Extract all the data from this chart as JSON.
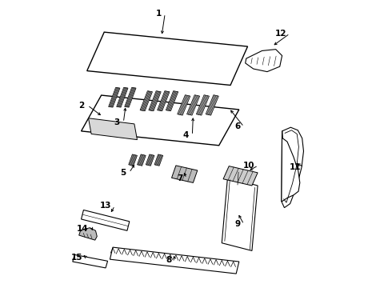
{
  "background_color": "#ffffff",
  "line_color": "#000000",
  "label_color": "#000000",
  "figsize": [
    4.9,
    3.6
  ],
  "dpi": 100,
  "leaders": {
    "1": {
      "label": [
        0.38,
        0.955
      ],
      "target": [
        0.38,
        0.875
      ]
    },
    "2": {
      "label": [
        0.11,
        0.635
      ],
      "target": [
        0.175,
        0.595
      ]
    },
    "3": {
      "label": [
        0.235,
        0.575
      ],
      "target": [
        0.255,
        0.635
      ]
    },
    "4": {
      "label": [
        0.475,
        0.53
      ],
      "target": [
        0.49,
        0.6
      ]
    },
    "5": {
      "label": [
        0.255,
        0.4
      ],
      "target": [
        0.29,
        0.435
      ]
    },
    "6": {
      "label": [
        0.655,
        0.56
      ],
      "target": [
        0.615,
        0.625
      ]
    },
    "7": {
      "label": [
        0.455,
        0.38
      ],
      "target": [
        0.455,
        0.408
      ]
    },
    "8": {
      "label": [
        0.415,
        0.095
      ],
      "target": [
        0.42,
        0.118
      ]
    },
    "9": {
      "label": [
        0.655,
        0.22
      ],
      "target": [
        0.645,
        0.26
      ]
    },
    "10": {
      "label": [
        0.705,
        0.425
      ],
      "target": [
        0.68,
        0.405
      ]
    },
    "11": {
      "label": [
        0.865,
        0.42
      ],
      "target": [
        0.845,
        0.435
      ]
    },
    "12": {
      "label": [
        0.815,
        0.885
      ],
      "target": [
        0.765,
        0.84
      ]
    },
    "13": {
      "label": [
        0.205,
        0.285
      ],
      "target": [
        0.2,
        0.255
      ]
    },
    "14": {
      "label": [
        0.125,
        0.205
      ],
      "target": [
        0.14,
        0.198
      ]
    },
    "15": {
      "label": [
        0.105,
        0.105
      ],
      "target": [
        0.108,
        0.112
      ]
    }
  }
}
